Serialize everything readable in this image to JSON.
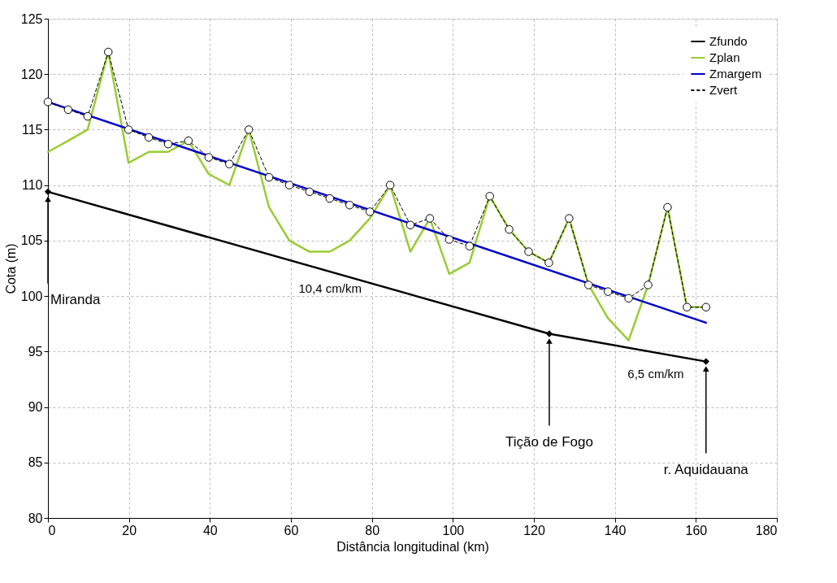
{
  "chart_data": {
    "type": "line",
    "xlabel": "Distância longitudinal (km)",
    "ylabel": "Cota (m)",
    "xlim": [
      0,
      180
    ],
    "xticks": [
      0,
      20,
      40,
      60,
      80,
      100,
      120,
      140,
      160,
      180
    ],
    "ylim": [
      80,
      125
    ],
    "yticks": [
      80,
      85,
      90,
      95,
      100,
      105,
      110,
      115,
      120,
      125
    ],
    "grid": true,
    "legend": "top right",
    "series": [
      {
        "name": "Zfundo",
        "color": "#000000",
        "marker": "diamond",
        "line_style": "solid",
        "x": [
          0,
          123.8,
          162.5
        ],
        "values": [
          109.4,
          96.6,
          94.1
        ]
      },
      {
        "name": "Zplan",
        "color": "#99cc33",
        "marker": "none",
        "line_style": "solid",
        "x": [
          0,
          5,
          9.8,
          14.9,
          19.9,
          24.9,
          29.7,
          34.7,
          39.7,
          44.8,
          49.6,
          54.6,
          59.6,
          64.6,
          69.6,
          74.5,
          79.5,
          84.5,
          89.5,
          94.3,
          99.1,
          104.1,
          109.1,
          113.9,
          118.7,
          123.7,
          128.7,
          133.5,
          138.3,
          143.4,
          148.2,
          153,
          157.8,
          162.5
        ],
        "values": [
          113,
          114,
          115,
          122,
          112,
          113,
          113,
          114,
          111,
          110,
          115,
          108,
          105,
          104,
          104,
          105,
          107,
          110,
          104,
          107,
          102,
          103,
          109,
          106,
          104,
          103,
          107,
          101,
          98,
          96,
          101,
          108,
          99,
          99
        ]
      },
      {
        "name": "Zmargem",
        "color": "#0000cc",
        "marker": "none",
        "line_style": "solid",
        "x": [
          0,
          162.5
        ],
        "values": [
          117.5,
          97.6
        ]
      },
      {
        "name": "Zvert",
        "color": "#000000",
        "marker": "circle",
        "line_style": "dashed",
        "x": [
          0,
          5,
          9.8,
          14.9,
          19.9,
          24.9,
          29.7,
          34.7,
          39.7,
          44.8,
          49.6,
          54.6,
          59.6,
          64.6,
          69.6,
          74.5,
          79.5,
          84.5,
          89.5,
          94.3,
          99.1,
          104.1,
          109.1,
          113.9,
          118.7,
          123.7,
          128.7,
          133.5,
          138.3,
          143.4,
          148.2,
          153,
          157.8,
          162.5
        ],
        "values": [
          117.5,
          116.8,
          116.2,
          122,
          115,
          114.3,
          113.7,
          114,
          112.5,
          111.9,
          115,
          110.7,
          110,
          109.4,
          108.8,
          108.2,
          107.6,
          110,
          106.4,
          107,
          105.1,
          104.5,
          109,
          106,
          104,
          103,
          107,
          101,
          100.4,
          99.8,
          101,
          108,
          99,
          99
        ]
      }
    ],
    "annotations": [
      {
        "text": "Miranda",
        "x": 0,
        "y": 109.4
      },
      {
        "text": "Tição de Fogo",
        "x": 123.8,
        "y": 96.6
      },
      {
        "text": "r. Aquidauana",
        "x": 162.5,
        "y": 94.1
      },
      "10,4 cm/km",
      "6,5 cm/km"
    ]
  }
}
